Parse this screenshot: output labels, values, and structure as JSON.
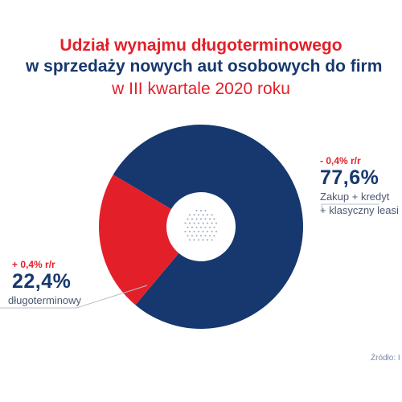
{
  "title": {
    "line1": "Udział wynajmu długoterminowego",
    "line2": "w sprzedaży nowych aut osobowych do firm",
    "line3": "w III kwartale 2020 roku"
  },
  "colors": {
    "navy": "#17386e",
    "red": "#e3202a"
  },
  "right_label": {
    "change": "- 0,4% r/r",
    "value": "77,6%",
    "desc1": "Zakup + kredyt",
    "desc2": "+ klasyczny leasi"
  },
  "left_label": {
    "change": "+ 0,4% r/r",
    "value": "22,4%",
    "desc": "długoterminowy"
  },
  "source": "Źródło: I",
  "chart_data": {
    "type": "pie",
    "donut": true,
    "title": "Udział wynajmu długoterminowego w sprzedaży nowych aut osobowych do firm w III kwartale 2020 roku",
    "unit": "%",
    "slices": [
      {
        "label": "Zakup + kredyt + klasyczny leasi",
        "value": 77.6,
        "color": "#17386e",
        "change": "- 0,4% r/r"
      },
      {
        "label": "długoterminowy",
        "value": 22.4,
        "color": "#e3202a",
        "change": "+ 0,4% r/r"
      }
    ]
  }
}
